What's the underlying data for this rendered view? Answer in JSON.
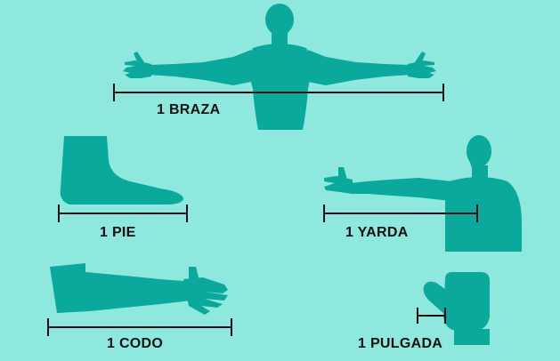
{
  "colors": {
    "background": "#8ee8de",
    "silhouette": "#0aa99b",
    "ruler": "#111111"
  },
  "units": {
    "braza": {
      "label": "1 BRAZA",
      "icon": "outstretched-arms-icon"
    },
    "pie": {
      "label": "1 PIE",
      "icon": "foot-icon"
    },
    "yarda": {
      "label": "1 YARDA",
      "icon": "arm-to-nose-icon"
    },
    "codo": {
      "label": "1 CODO",
      "icon": "forearm-icon"
    },
    "pulgada": {
      "label": "1 PULGADA",
      "icon": "thumb-icon"
    }
  }
}
